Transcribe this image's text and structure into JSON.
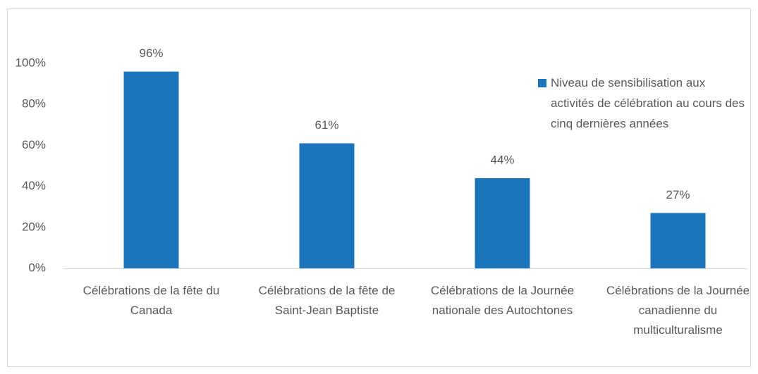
{
  "chart_data": {
    "type": "bar",
    "categories": [
      "Célébrations de la fête du Canada",
      "Célébrations de la fête de Saint-Jean Baptiste",
      "Célébrations de la Journée nationale des Autochtones",
      "Célébrations de la Journée canadienne du multiculturalisme"
    ],
    "series": [
      {
        "name": "Niveau de sensibilisation aux activités de célébration au cours des cinq dernières années",
        "color": "#1b75bc",
        "values": [
          96,
          61,
          44,
          27
        ],
        "value_labels": [
          "96%",
          "61%",
          "44%",
          "27%"
        ]
      }
    ],
    "ylim": [
      0,
      100
    ],
    "yticks": [
      {
        "value": 0,
        "label": "0%"
      },
      {
        "value": 20,
        "label": "20%"
      },
      {
        "value": 40,
        "label": "40%"
      },
      {
        "value": 60,
        "label": "60%"
      },
      {
        "value": 80,
        "label": "80%"
      },
      {
        "value": 100,
        "label": "100%"
      }
    ],
    "grid": false
  }
}
